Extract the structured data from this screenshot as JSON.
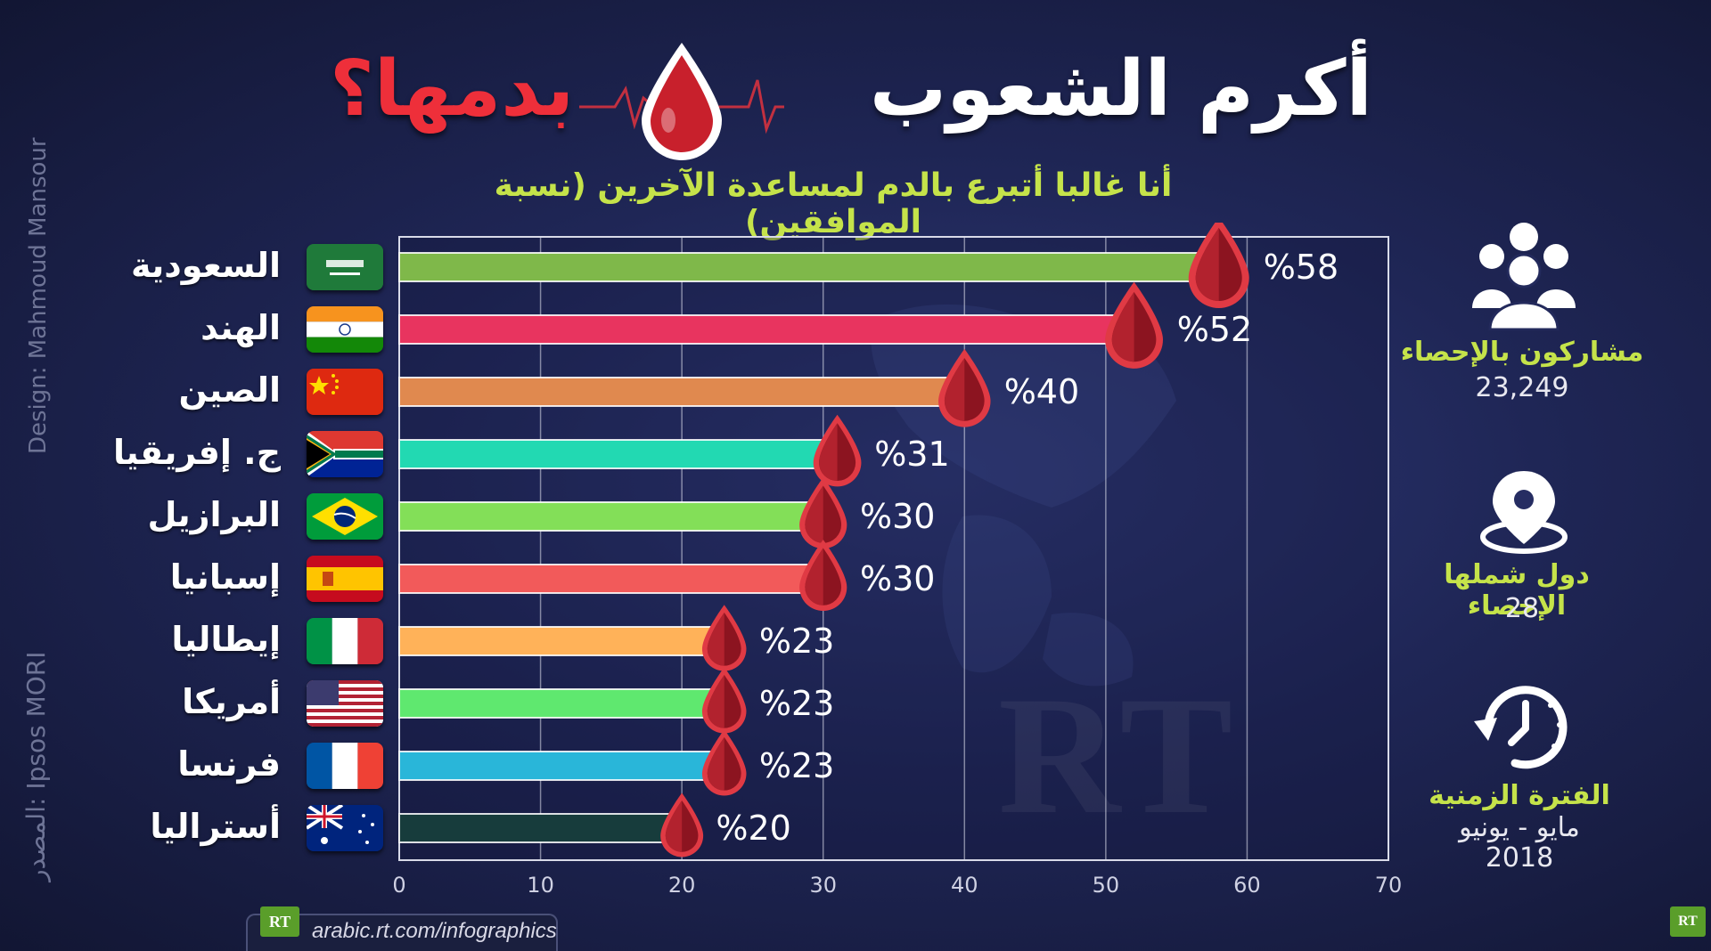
{
  "title": {
    "main": "أكرم الشعوب",
    "highlight": "بدمها؟"
  },
  "subtitle": "أنا غالبا أتبرع بالدم لمساعدة الآخرين (نسبة الموافقين)",
  "chart_data": {
    "type": "bar",
    "orientation": "horizontal",
    "categories": [
      "السعودية",
      "الهند",
      "الصين",
      "ج. إفريقيا",
      "البرازيل",
      "إسبانيا",
      "إيطاليا",
      "أمريكا",
      "فرنسا",
      "أستراليا"
    ],
    "values": [
      58,
      52,
      40,
      31,
      30,
      30,
      23,
      23,
      23,
      20
    ],
    "value_labels": [
      "%58",
      "%52",
      "%40",
      "%31",
      "%30",
      "%30",
      "%23",
      "%23",
      "%23",
      "%20"
    ],
    "bar_colors": [
      "#7fb84a",
      "#e8345f",
      "#e0894f",
      "#22d9b2",
      "#83df58",
      "#f25a5a",
      "#ffb259",
      "#5fe86f",
      "#29b6d9",
      "#173c3c"
    ],
    "flags": [
      "saudi-arabia-flag",
      "india-flag",
      "china-flag",
      "south-africa-flag",
      "brazil-flag",
      "spain-flag",
      "italy-flag",
      "usa-flag",
      "france-flag",
      "australia-flag"
    ],
    "xlim": [
      0,
      70
    ],
    "xticks": [
      "0",
      "10",
      "20",
      "30",
      "40",
      "50",
      "60",
      "70"
    ],
    "grid": "vertical",
    "marker": "blood-drop-icon"
  },
  "stats": {
    "participants": {
      "label": "مشاركون بالإحصاء",
      "value": "23,249",
      "icon": "people-group-icon"
    },
    "countries": {
      "label": "دول شملها الإحصاء",
      "value": "28",
      "icon": "location-pin-icon"
    },
    "period": {
      "label": "الفترة الزمنية",
      "value": "مايو - يونيو",
      "year": "2018",
      "icon": "clock-icon"
    }
  },
  "credits": {
    "design": "Design: Mahmoud Mansour",
    "source": "المصدر: Ipsos MORI"
  },
  "footer": {
    "logo": "RT",
    "url": "arabic.rt.com/infographics",
    "corner_logo": "RT"
  },
  "watermark": "RT",
  "colors": {
    "accent": "#c5e34a",
    "highlight": "#ee2f3a",
    "drop": "#b01e2a"
  }
}
